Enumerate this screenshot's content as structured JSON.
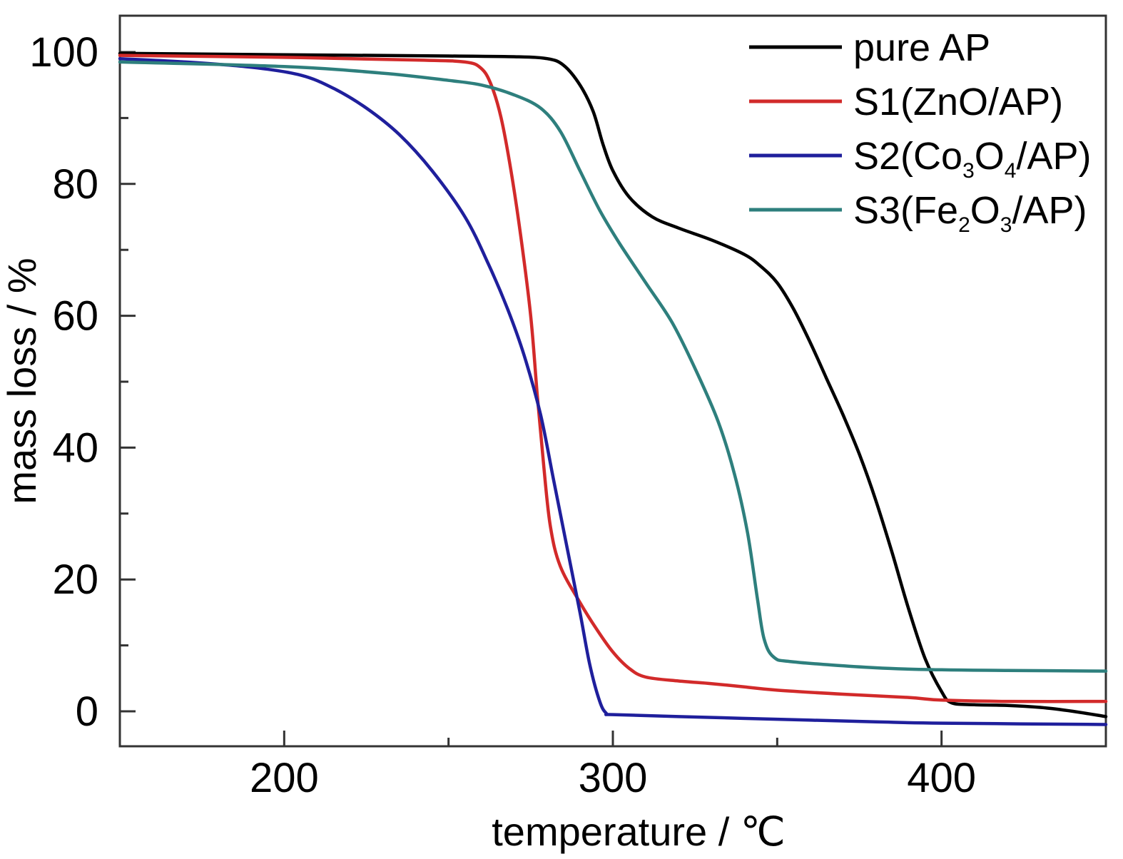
{
  "chart_data": {
    "type": "line",
    "xlabel": "temperature / ℃",
    "ylabel": "mass loss / %",
    "xlim": [
      150,
      450
    ],
    "ylim": [
      -5,
      105
    ],
    "xticks": [
      200,
      300,
      400
    ],
    "yticks": [
      0,
      20,
      40,
      60,
      80,
      100
    ],
    "grid": false,
    "legend_position": "top-right",
    "series": [
      {
        "name": "pure AP",
        "legend_parts": [
          {
            "t": "pure AP"
          }
        ],
        "color": "#000000",
        "points": [
          [
            150,
            99.8
          ],
          [
            200,
            99.6
          ],
          [
            250,
            99.4
          ],
          [
            270,
            99.3
          ],
          [
            280,
            99
          ],
          [
            285,
            98
          ],
          [
            290,
            95
          ],
          [
            294,
            91
          ],
          [
            297,
            86
          ],
          [
            300,
            82
          ],
          [
            305,
            78
          ],
          [
            312,
            75
          ],
          [
            320,
            73.3
          ],
          [
            330,
            71.5
          ],
          [
            340,
            69.3
          ],
          [
            345,
            67.5
          ],
          [
            350,
            65
          ],
          [
            355,
            61
          ],
          [
            360,
            56
          ],
          [
            365,
            50.5
          ],
          [
            370,
            45
          ],
          [
            375,
            39
          ],
          [
            380,
            32
          ],
          [
            385,
            24
          ],
          [
            390,
            15.5
          ],
          [
            395,
            8
          ],
          [
            400,
            3
          ],
          [
            403,
            1.3
          ],
          [
            410,
            1.0
          ],
          [
            420,
            0.9
          ],
          [
            430,
            0.6
          ],
          [
            440,
            0
          ],
          [
            450,
            -0.8
          ]
        ]
      },
      {
        "name": "S1(ZnO/AP)",
        "legend_parts": [
          {
            "t": "S1(ZnO/AP)"
          }
        ],
        "color": "#d22a2a",
        "points": [
          [
            150,
            99.5
          ],
          [
            200,
            99.2
          ],
          [
            240,
            98.8
          ],
          [
            255,
            98.5
          ],
          [
            260,
            97.5
          ],
          [
            263,
            95
          ],
          [
            266,
            90
          ],
          [
            269,
            82
          ],
          [
            272,
            72
          ],
          [
            275,
            60
          ],
          [
            277,
            48
          ],
          [
            279,
            37
          ],
          [
            281,
            28
          ],
          [
            284,
            22
          ],
          [
            290,
            16.5
          ],
          [
            295,
            12.5
          ],
          [
            300,
            9
          ],
          [
            305,
            6.5
          ],
          [
            310,
            5.2
          ],
          [
            320,
            4.6
          ],
          [
            330,
            4.2
          ],
          [
            340,
            3.7
          ],
          [
            350,
            3.2
          ],
          [
            370,
            2.6
          ],
          [
            390,
            2.1
          ],
          [
            400,
            1.7
          ],
          [
            420,
            1.5
          ],
          [
            450,
            1.5
          ]
        ]
      },
      {
        "name": "S2(Co3O4/AP)",
        "legend_parts": [
          {
            "t": "S2(Co"
          },
          {
            "t": "3",
            "sub": true
          },
          {
            "t": "O"
          },
          {
            "t": "4",
            "sub": true
          },
          {
            "t": "/AP)"
          }
        ],
        "color": "#1f1f9c",
        "points": [
          [
            150,
            99
          ],
          [
            170,
            98.5
          ],
          [
            190,
            97.7
          ],
          [
            205,
            96.5
          ],
          [
            215,
            94.5
          ],
          [
            225,
            91.5
          ],
          [
            235,
            87.5
          ],
          [
            245,
            82
          ],
          [
            255,
            75
          ],
          [
            262,
            68
          ],
          [
            268,
            61
          ],
          [
            273,
            54
          ],
          [
            278,
            45
          ],
          [
            282,
            35
          ],
          [
            286,
            25
          ],
          [
            290,
            15
          ],
          [
            293,
            7
          ],
          [
            296,
            1.5
          ],
          [
            298,
            -0.3
          ],
          [
            300,
            -0.5
          ],
          [
            320,
            -0.8
          ],
          [
            350,
            -1.2
          ],
          [
            380,
            -1.6
          ],
          [
            400,
            -1.8
          ],
          [
            450,
            -2.0
          ]
        ]
      },
      {
        "name": "S3(Fe2O3/AP)",
        "legend_parts": [
          {
            "t": "S3(Fe"
          },
          {
            "t": "2",
            "sub": true
          },
          {
            "t": "O"
          },
          {
            "t": "3",
            "sub": true
          },
          {
            "t": "/AP)"
          }
        ],
        "color": "#2e7f7d",
        "points": [
          [
            150,
            98.5
          ],
          [
            200,
            97.8
          ],
          [
            230,
            96.8
          ],
          [
            250,
            95.7
          ],
          [
            260,
            95
          ],
          [
            270,
            93.5
          ],
          [
            278,
            91.5
          ],
          [
            284,
            88
          ],
          [
            290,
            82
          ],
          [
            296,
            76
          ],
          [
            302,
            71
          ],
          [
            310,
            65
          ],
          [
            318,
            59
          ],
          [
            325,
            52
          ],
          [
            332,
            44
          ],
          [
            337,
            36
          ],
          [
            341,
            27
          ],
          [
            344,
            17
          ],
          [
            346,
            11
          ],
          [
            349,
            8.2
          ],
          [
            355,
            7.5
          ],
          [
            380,
            6.6
          ],
          [
            400,
            6.3
          ],
          [
            420,
            6.2
          ],
          [
            450,
            6.1
          ]
        ]
      }
    ]
  }
}
